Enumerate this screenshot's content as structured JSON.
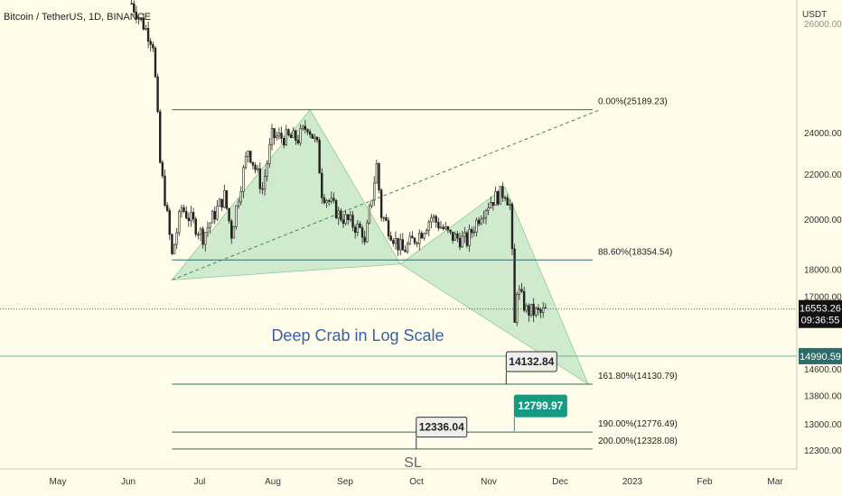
{
  "chart_data": {
    "type": "candlestick",
    "title": "Bitcoin / TetherUS, 1D, BINANCE",
    "currency": "USDT",
    "scale": "log",
    "ylim": [
      11900,
      27300
    ],
    "y_ticks": [
      12300,
      13000,
      13800,
      14600,
      17000,
      18000,
      20000,
      22000,
      24000
    ],
    "top_tick_partial": "26000.00",
    "x_ticks": [
      "May",
      "Jun",
      "Jul",
      "Aug",
      "Sep",
      "Oct",
      "Nov",
      "Dec",
      "2023",
      "Feb",
      "Mar"
    ],
    "last_price": "16553.26",
    "countdown": "09:36:55",
    "alert_price": "14990.59",
    "annotation": "Deep Crab in Log Scale",
    "fib_levels": [
      {
        "ratio_label": "0.00%(25189.23)",
        "price": 25189.23
      },
      {
        "ratio_label": "88.60%(18354.54)",
        "price": 18354.54
      },
      {
        "ratio_label": "161.80%(14130.79)",
        "price": 14130.79
      },
      {
        "ratio_label": "190.00%(12776.49)",
        "price": 12776.49
      },
      {
        "ratio_label": "200.00%(12328.08)",
        "price": 12328.08
      }
    ],
    "callouts": [
      {
        "label": "14132.84",
        "price": 14132.84,
        "date": "2022-11-07"
      },
      {
        "label": "12799.97",
        "price": 12799.97,
        "date": "2022-11-07"
      },
      {
        "label": "12336.04",
        "price": 12336.04,
        "date": "2022-09-26"
      }
    ],
    "stop_label": "SL",
    "pattern_points": {
      "X": {
        "date": "2022-06-18",
        "price": 17600
      },
      "A": {
        "date": "2022-08-15",
        "price": 25189
      },
      "B": {
        "date": "2022-09-22",
        "price": 18200
      },
      "C": {
        "date": "2022-11-05",
        "price": 21400
      },
      "D": {
        "date": "2022-12-10",
        "price": 14130
      }
    },
    "trend_line": {
      "start": {
        "date": "2022-06-18",
        "price": 17600
      },
      "end": {
        "date": "2022-12-15",
        "price": 25189
      }
    },
    "price_waypoints": [
      [
        "2022-06-01",
        31500
      ],
      [
        "2022-06-10",
        29000
      ],
      [
        "2022-06-13",
        22500
      ],
      [
        "2022-06-18",
        18500
      ],
      [
        "2022-06-22",
        20500
      ],
      [
        "2022-07-01",
        19300
      ],
      [
        "2022-07-10",
        21000
      ],
      [
        "2022-07-13",
        19400
      ],
      [
        "2022-07-20",
        23200
      ],
      [
        "2022-07-26",
        21300
      ],
      [
        "2022-07-30",
        23800
      ],
      [
        "2022-08-10",
        23700
      ],
      [
        "2022-08-14",
        24400
      ],
      [
        "2022-08-18",
        23300
      ],
      [
        "2022-08-20",
        21200
      ],
      [
        "2022-08-27",
        20200
      ],
      [
        "2022-09-06",
        19500
      ],
      [
        "2022-09-07",
        18900
      ],
      [
        "2022-09-12",
        22400
      ],
      [
        "2022-09-14",
        20200
      ],
      [
        "2022-09-20",
        19100
      ],
      [
        "2022-09-23",
        18700
      ],
      [
        "2022-10-01",
        19500
      ],
      [
        "2022-10-05",
        20100
      ],
      [
        "2022-10-13",
        19300
      ],
      [
        "2022-10-20",
        19100
      ],
      [
        "2022-10-26",
        20300
      ],
      [
        "2022-10-30",
        20800
      ],
      [
        "2022-11-05",
        21200
      ],
      [
        "2022-11-07",
        20600
      ],
      [
        "2022-11-08",
        18500
      ],
      [
        "2022-11-09",
        16000
      ],
      [
        "2022-11-10",
        17300
      ],
      [
        "2022-11-14",
        16500
      ],
      [
        "2022-11-20",
        16400
      ],
      [
        "2022-11-23",
        16553
      ]
    ]
  }
}
